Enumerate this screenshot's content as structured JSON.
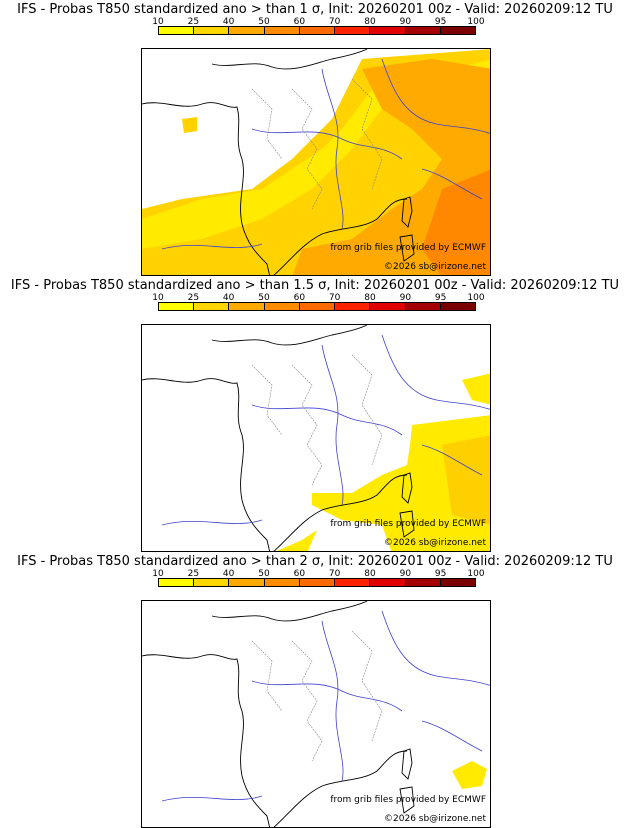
{
  "scale": {
    "ticks": [
      "10",
      "25",
      "40",
      "50",
      "60",
      "70",
      "80",
      "90",
      "95",
      "100"
    ],
    "colors": [
      "#ffff00",
      "#ffd700",
      "#ffaa00",
      "#ff8c00",
      "#ff6a00",
      "#ff2200",
      "#e00000",
      "#a50000",
      "#7a0000"
    ]
  },
  "panels": [
    {
      "title": "IFS - Probas T850  standardized ano > than 1 σ, Init: 20260201 00z - Valid: 20260209:12 TU",
      "credit_source": "from grib files provided by ECMWF",
      "credit_copyright": "©2026 sb@irizone.net"
    },
    {
      "title": "IFS - Probas T850  standardized ano > than 1.5 σ, Init: 20260201 00z - Valid: 20260209:12 TU",
      "credit_source": "from grib files provided by ECMWF",
      "credit_copyright": "©2026 sb@irizone.net"
    },
    {
      "title": "IFS - Probas T850  standardized ano > than 2 σ, Init: 20260201 00z - Valid: 20260209:12 TU",
      "credit_source": "from grib files provided by ECMWF",
      "credit_copyright": "©2026 sb@irizone.net"
    }
  ]
}
